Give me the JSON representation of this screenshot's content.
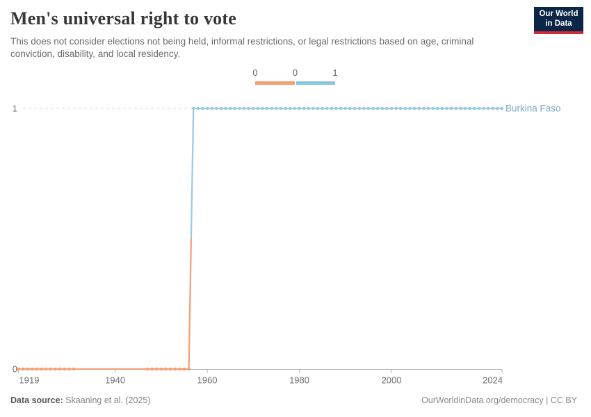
{
  "header": {
    "title": "Men's universal right to vote",
    "subtitle": "This does not consider elections not being held, informal restrictions, or legal restrictions based on age, criminal conviction, disability, and local residency.",
    "logo": {
      "line1": "Our World",
      "line2": "in Data"
    }
  },
  "legend": {
    "tick_labels": [
      "0",
      "0",
      "1"
    ],
    "segments": [
      {
        "value": 0,
        "color": "#F2A076"
      },
      {
        "value": 1,
        "color": "#8CC3DF"
      }
    ]
  },
  "chart_data": {
    "type": "line",
    "title": "Men's universal right to vote",
    "entity": "Burkina Faso",
    "xlabel": "",
    "ylabel": "",
    "xlim": [
      1919,
      2024
    ],
    "ylim": [
      0,
      1
    ],
    "x_ticks": [
      1919,
      1940,
      1960,
      1980,
      2000,
      2024
    ],
    "y_ticks": [
      0,
      1
    ],
    "grid": "dashed horizontal gridline at y=1, solid axis at y=0",
    "legend_position": "top-center",
    "steps": [
      {
        "from_year": 1919,
        "to_year": 1956,
        "value": 0,
        "color": "#F2A076",
        "marker_runs": [
          [
            1919,
            1931
          ],
          [
            1947,
            1956
          ]
        ]
      },
      {
        "from_year": 1957,
        "to_year": 2024,
        "value": 1,
        "color": "#9EC9E3",
        "marker_runs": [
          [
            1957,
            2024
          ]
        ]
      }
    ],
    "entity_label_color": "#7BA7C9",
    "axis_color": "#b0b0b0",
    "gridline_color": "#d6d6d6",
    "tick_label_color": "#6e6e6e"
  },
  "footer": {
    "data_source_label": "Data source:",
    "data_source_value": "Skaaning et al. (2025)",
    "license": "OurWorldinData.org/democracy | CC BY"
  }
}
